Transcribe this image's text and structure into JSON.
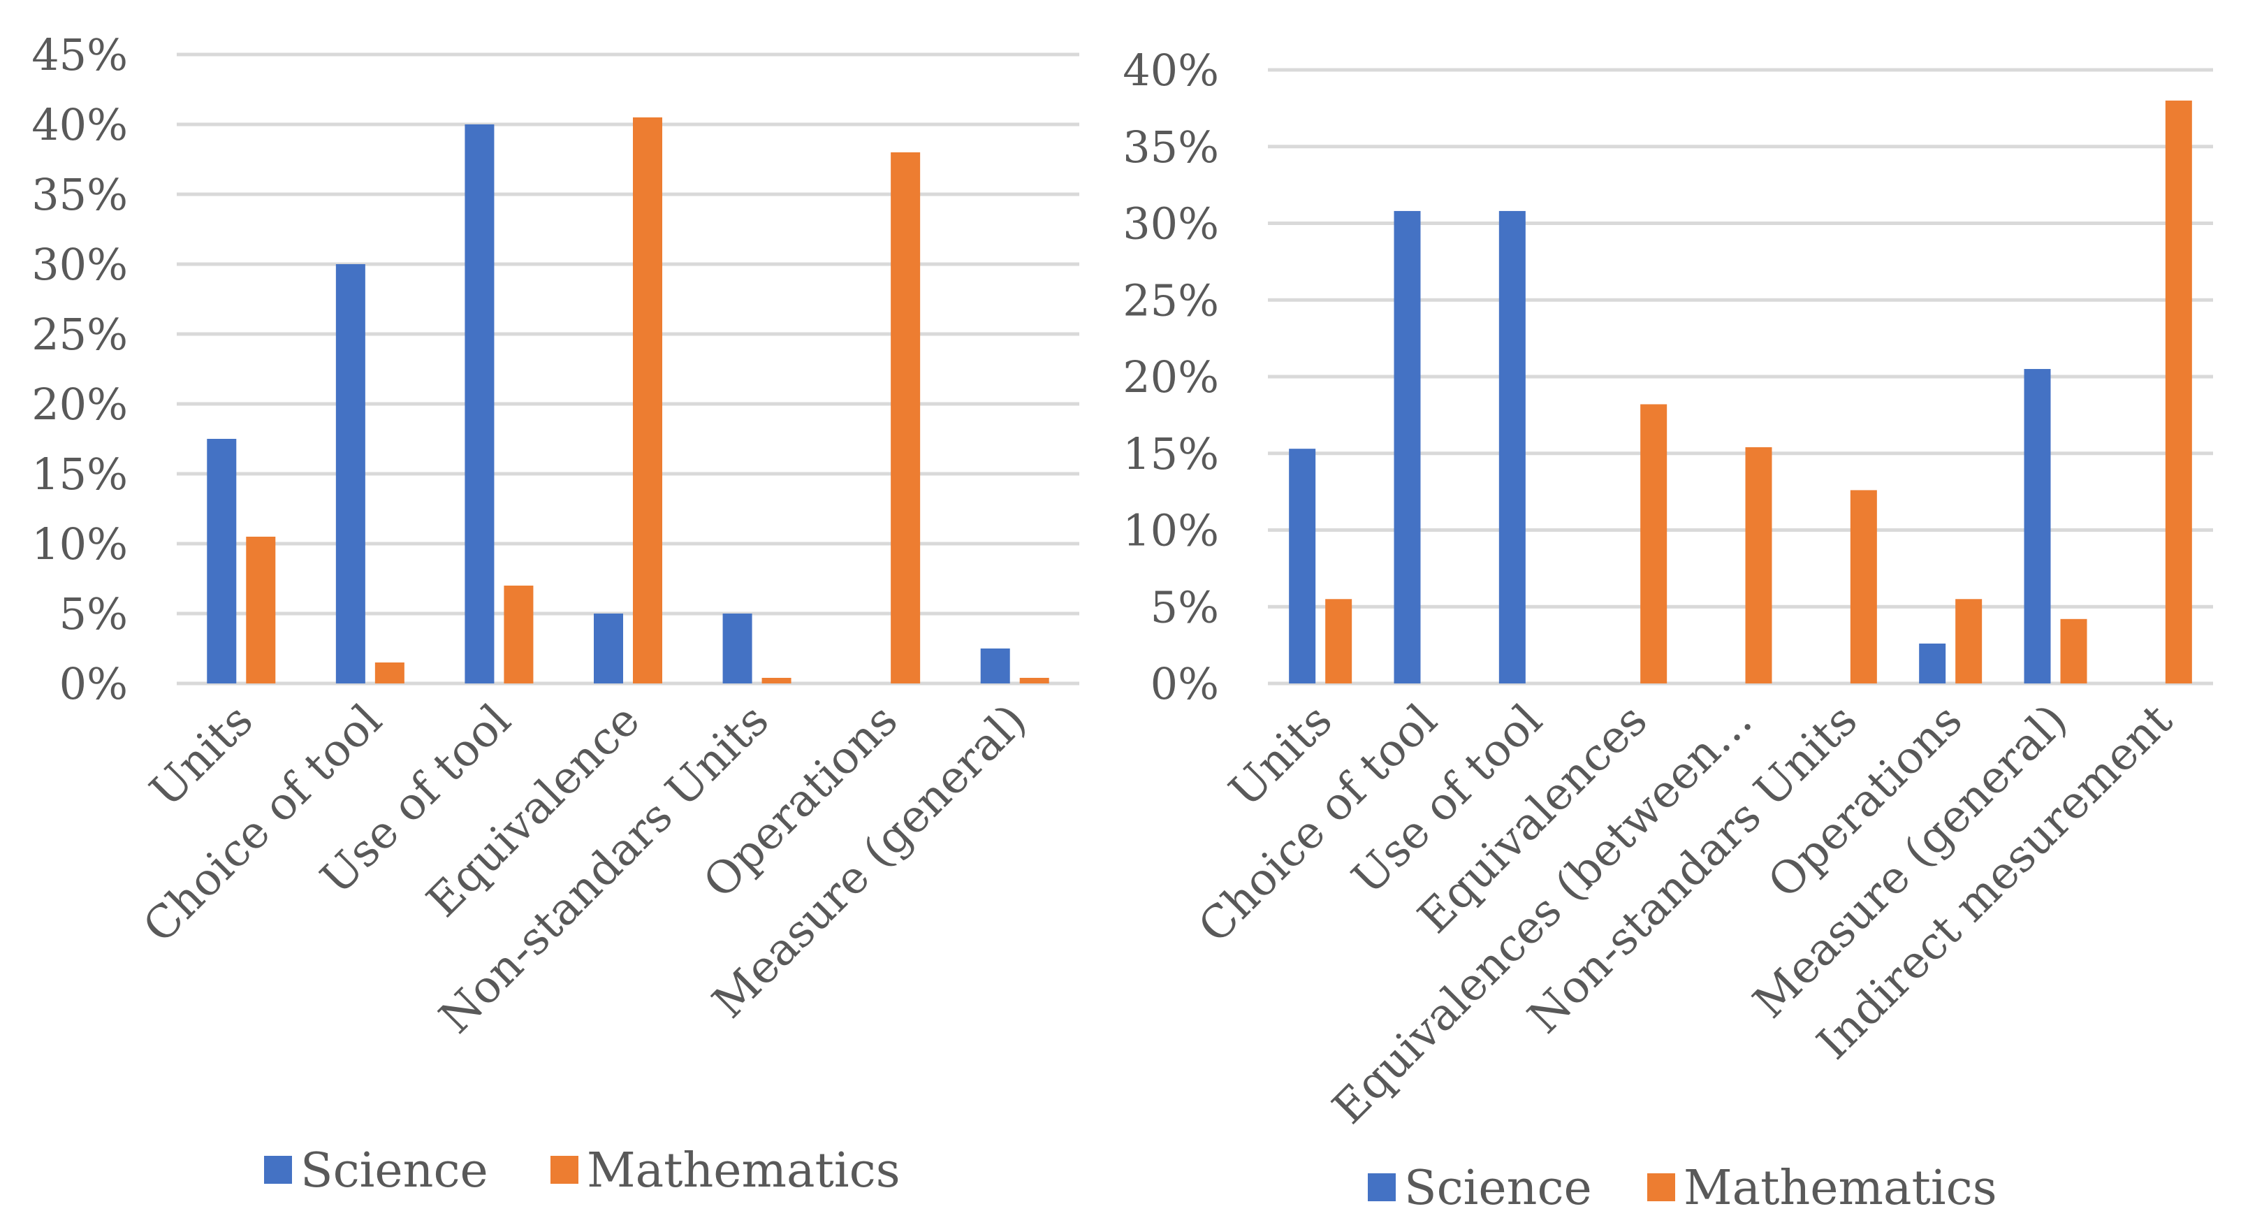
{
  "chart_data": [
    {
      "type": "bar",
      "categories": [
        "Units",
        "Choice of tool",
        "Use of tool",
        "Equivalence",
        "Non-standars Units",
        "Operations",
        "Measure (general)"
      ],
      "series": [
        {
          "name": "Science",
          "color": "#4472c4",
          "values": [
            17.5,
            30,
            40,
            5,
            5,
            0,
            2.5
          ]
        },
        {
          "name": "Mathematics",
          "color": "#ed7d31",
          "values": [
            10.5,
            1.5,
            7,
            40.5,
            0.4,
            38,
            0.4
          ]
        }
      ],
      "yticks": [
        "0%",
        "5%",
        "10%",
        "15%",
        "20%",
        "25%",
        "30%",
        "35%",
        "40%",
        "45%"
      ],
      "ylim": [
        0,
        45
      ],
      "title": "",
      "xlabel": "",
      "ylabel": "",
      "legend_position": "bottom"
    },
    {
      "type": "bar",
      "categories": [
        "Units",
        "Choice of tool",
        "Use of tool",
        "Equivalences",
        "Equivalences (between…",
        "Non-standars Units",
        "Operations",
        "Measure (general)",
        "Indirect mesurement"
      ],
      "series": [
        {
          "name": "Science",
          "color": "#4472c4",
          "values": [
            15.3,
            30.8,
            30.8,
            0,
            0,
            0,
            2.6,
            20.5,
            0
          ]
        },
        {
          "name": "Mathematics",
          "color": "#ed7d31",
          "values": [
            5.5,
            0,
            0,
            18.2,
            15.4,
            12.6,
            5.5,
            4.2,
            38
          ]
        }
      ],
      "yticks": [
        "0%",
        "5%",
        "10%",
        "15%",
        "20%",
        "25%",
        "30%",
        "35%",
        "40%"
      ],
      "ylim": [
        0,
        40
      ],
      "title": "",
      "xlabel": "",
      "ylabel": "",
      "legend_position": "bottom"
    }
  ]
}
